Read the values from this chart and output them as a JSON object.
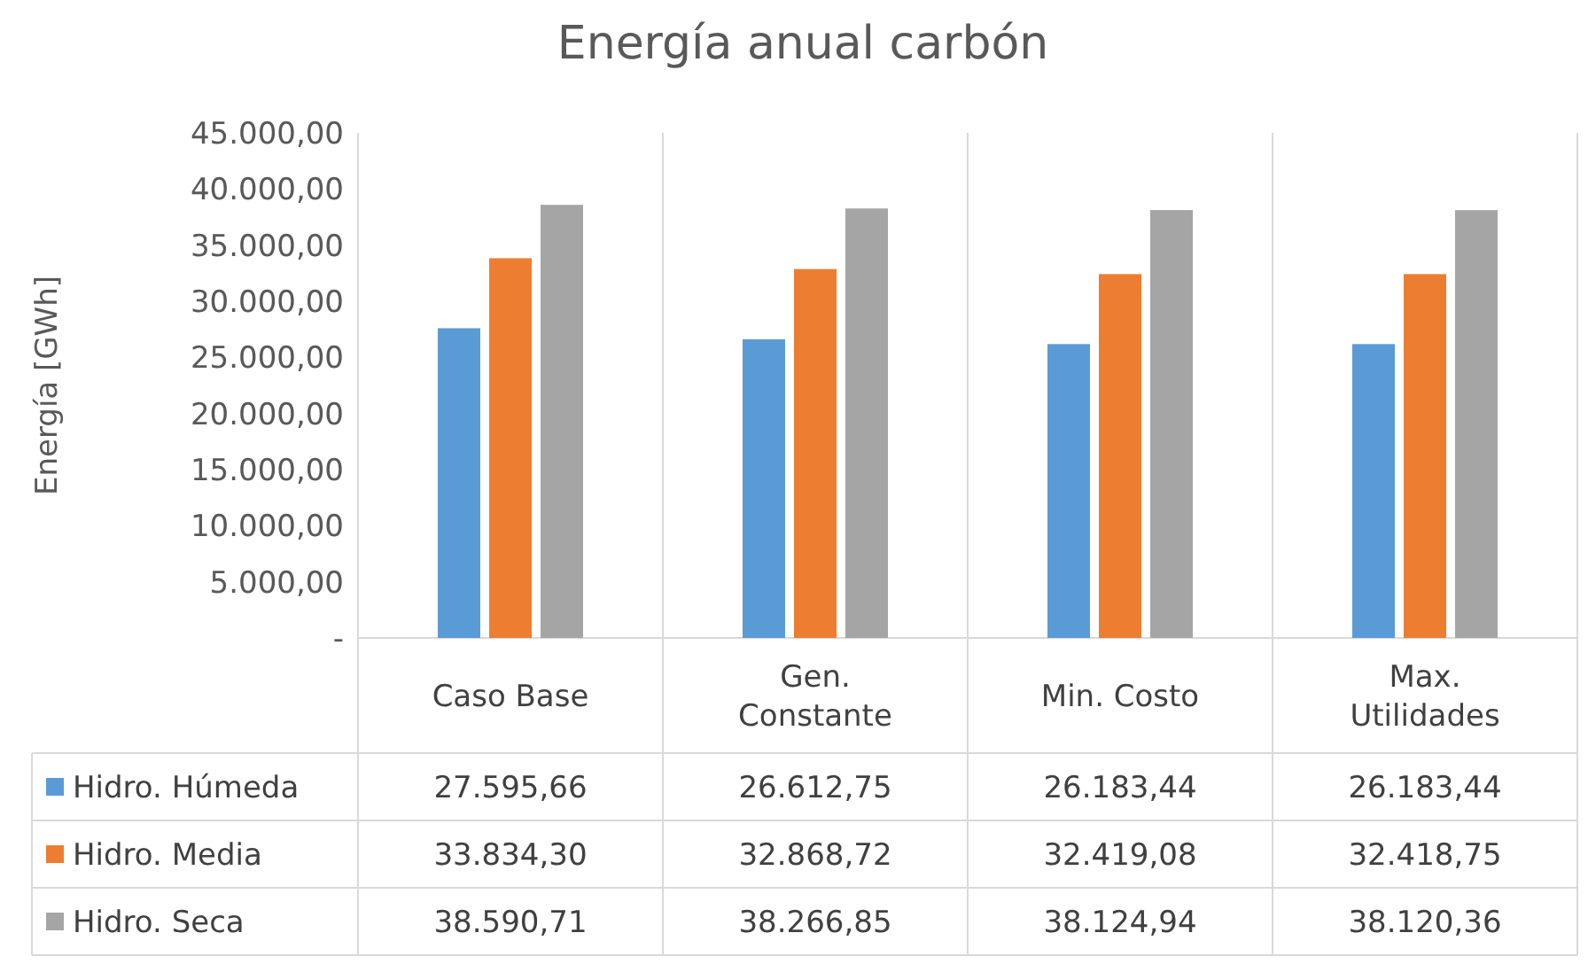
{
  "chart_data": {
    "type": "bar",
    "title": "Energía anual carbón",
    "ylabel": "Energía [GWh]",
    "categories": [
      "Caso Base",
      "Gen. Constante",
      "Min. Costo",
      "Max. Utilidades"
    ],
    "series": [
      {
        "name": "Hidro. Húmeda",
        "color": "#5b9bd5",
        "values": [
          27595.66,
          26612.75,
          26183.44,
          26183.44
        ],
        "value_labels": [
          "27.595,66",
          "26.612,75",
          "26.183,44",
          "26.183,44"
        ]
      },
      {
        "name": "Hidro. Media",
        "color": "#ed7d31",
        "values": [
          33834.3,
          32868.72,
          32419.08,
          32418.75
        ],
        "value_labels": [
          "33.834,30",
          "32.868,72",
          "32.419,08",
          "32.418,75"
        ]
      },
      {
        "name": "Hidro. Seca",
        "color": "#a5a5a5",
        "values": [
          38590.71,
          38266.85,
          38124.94,
          38120.36
        ],
        "value_labels": [
          "38.590,71",
          "38.266,85",
          "38.124,94",
          "38.120,36"
        ]
      }
    ],
    "ylim": [
      0,
      45000
    ],
    "yticks": [
      {
        "value": 0,
        "label": "-"
      },
      {
        "value": 5000,
        "label": "5.000,00"
      },
      {
        "value": 10000,
        "label": "10.000,00"
      },
      {
        "value": 15000,
        "label": "15.000,00"
      },
      {
        "value": 20000,
        "label": "20.000,00"
      },
      {
        "value": 25000,
        "label": "25.000,00"
      },
      {
        "value": 30000,
        "label": "30.000,00"
      },
      {
        "value": 35000,
        "label": "35.000,00"
      },
      {
        "value": 40000,
        "label": "40.000,00"
      },
      {
        "value": 45000,
        "label": "45.000,00"
      }
    ],
    "legend": "bottom"
  }
}
